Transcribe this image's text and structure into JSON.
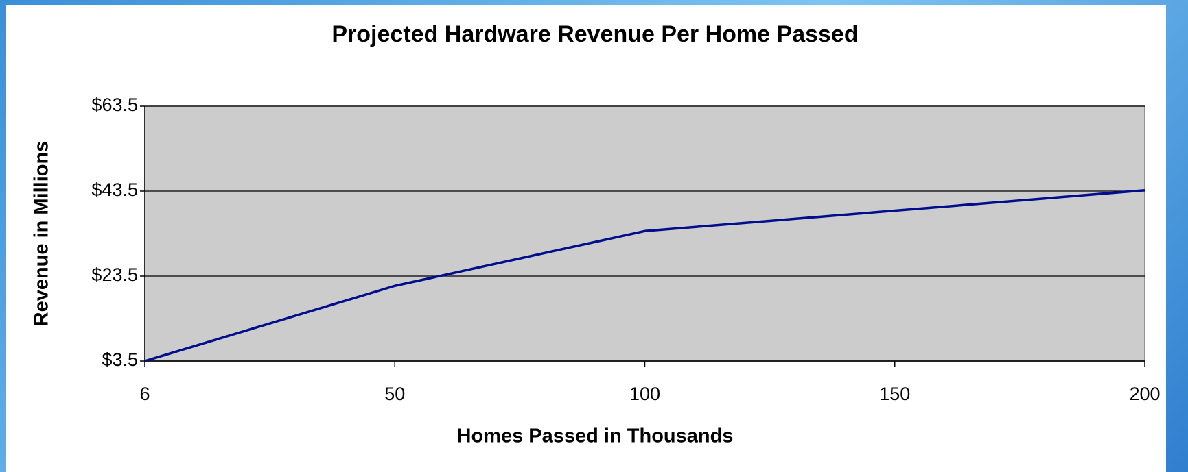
{
  "chart_data": {
    "type": "line",
    "title": "Projected Hardware Revenue Per Home Passed",
    "x_label": "Homes Passed in Thousands",
    "y_label": "Revenue in Millions",
    "categories": [
      "6",
      "50",
      "100",
      "150",
      "200"
    ],
    "series": [
      {
        "name": "Revenue",
        "color": "#000e8c",
        "values": [
          3.5,
          21.2,
          34.1,
          38.9,
          43.7
        ]
      }
    ],
    "ylim": [
      3.5,
      63.5
    ],
    "yticks": [
      {
        "value": 3.5,
        "label": "$3.5"
      },
      {
        "value": 23.5,
        "label": "$23.5"
      },
      {
        "value": 43.5,
        "label": "$43.5"
      },
      {
        "value": 63.5,
        "label": "$63.5"
      }
    ],
    "grid": true,
    "plot_background": "#cccccc"
  }
}
